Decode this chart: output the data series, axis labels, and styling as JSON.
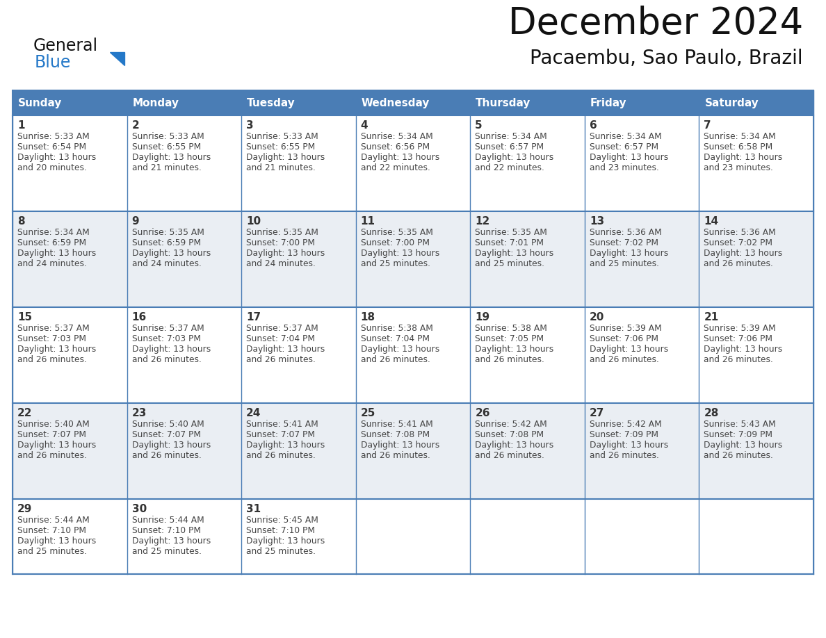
{
  "title": "December 2024",
  "subtitle": "Pacaembu, Sao Paulo, Brazil",
  "days_of_week": [
    "Sunday",
    "Monday",
    "Tuesday",
    "Wednesday",
    "Thursday",
    "Friday",
    "Saturday"
  ],
  "header_bg": "#4A7DB5",
  "header_text": "#FFFFFF",
  "cell_border": "#4A7DB5",
  "row_bg_even": "#EAEEF3",
  "row_bg_odd": "#FFFFFF",
  "day_number_color": "#333333",
  "cell_text_color": "#444444",
  "background": "#FFFFFF",
  "title_color": "#111111",
  "subtitle_color": "#111111",
  "logo_general_color": "#111111",
  "logo_blue_color": "#2478C8",
  "calendar_data": [
    [
      {
        "day": 1,
        "sunrise": "5:33 AM",
        "sunset": "6:54 PM",
        "daylight_hours": 13,
        "daylight_min": "20 minutes."
      },
      {
        "day": 2,
        "sunrise": "5:33 AM",
        "sunset": "6:55 PM",
        "daylight_hours": 13,
        "daylight_min": "21 minutes."
      },
      {
        "day": 3,
        "sunrise": "5:33 AM",
        "sunset": "6:55 PM",
        "daylight_hours": 13,
        "daylight_min": "21 minutes."
      },
      {
        "day": 4,
        "sunrise": "5:34 AM",
        "sunset": "6:56 PM",
        "daylight_hours": 13,
        "daylight_min": "22 minutes."
      },
      {
        "day": 5,
        "sunrise": "5:34 AM",
        "sunset": "6:57 PM",
        "daylight_hours": 13,
        "daylight_min": "22 minutes."
      },
      {
        "day": 6,
        "sunrise": "5:34 AM",
        "sunset": "6:57 PM",
        "daylight_hours": 13,
        "daylight_min": "23 minutes."
      },
      {
        "day": 7,
        "sunrise": "5:34 AM",
        "sunset": "6:58 PM",
        "daylight_hours": 13,
        "daylight_min": "23 minutes."
      }
    ],
    [
      {
        "day": 8,
        "sunrise": "5:34 AM",
        "sunset": "6:59 PM",
        "daylight_hours": 13,
        "daylight_min": "24 minutes."
      },
      {
        "day": 9,
        "sunrise": "5:35 AM",
        "sunset": "6:59 PM",
        "daylight_hours": 13,
        "daylight_min": "24 minutes."
      },
      {
        "day": 10,
        "sunrise": "5:35 AM",
        "sunset": "7:00 PM",
        "daylight_hours": 13,
        "daylight_min": "24 minutes."
      },
      {
        "day": 11,
        "sunrise": "5:35 AM",
        "sunset": "7:00 PM",
        "daylight_hours": 13,
        "daylight_min": "25 minutes."
      },
      {
        "day": 12,
        "sunrise": "5:35 AM",
        "sunset": "7:01 PM",
        "daylight_hours": 13,
        "daylight_min": "25 minutes."
      },
      {
        "day": 13,
        "sunrise": "5:36 AM",
        "sunset": "7:02 PM",
        "daylight_hours": 13,
        "daylight_min": "25 minutes."
      },
      {
        "day": 14,
        "sunrise": "5:36 AM",
        "sunset": "7:02 PM",
        "daylight_hours": 13,
        "daylight_min": "26 minutes."
      }
    ],
    [
      {
        "day": 15,
        "sunrise": "5:37 AM",
        "sunset": "7:03 PM",
        "daylight_hours": 13,
        "daylight_min": "26 minutes."
      },
      {
        "day": 16,
        "sunrise": "5:37 AM",
        "sunset": "7:03 PM",
        "daylight_hours": 13,
        "daylight_min": "26 minutes."
      },
      {
        "day": 17,
        "sunrise": "5:37 AM",
        "sunset": "7:04 PM",
        "daylight_hours": 13,
        "daylight_min": "26 minutes."
      },
      {
        "day": 18,
        "sunrise": "5:38 AM",
        "sunset": "7:04 PM",
        "daylight_hours": 13,
        "daylight_min": "26 minutes."
      },
      {
        "day": 19,
        "sunrise": "5:38 AM",
        "sunset": "7:05 PM",
        "daylight_hours": 13,
        "daylight_min": "26 minutes."
      },
      {
        "day": 20,
        "sunrise": "5:39 AM",
        "sunset": "7:06 PM",
        "daylight_hours": 13,
        "daylight_min": "26 minutes."
      },
      {
        "day": 21,
        "sunrise": "5:39 AM",
        "sunset": "7:06 PM",
        "daylight_hours": 13,
        "daylight_min": "26 minutes."
      }
    ],
    [
      {
        "day": 22,
        "sunrise": "5:40 AM",
        "sunset": "7:07 PM",
        "daylight_hours": 13,
        "daylight_min": "26 minutes."
      },
      {
        "day": 23,
        "sunrise": "5:40 AM",
        "sunset": "7:07 PM",
        "daylight_hours": 13,
        "daylight_min": "26 minutes."
      },
      {
        "day": 24,
        "sunrise": "5:41 AM",
        "sunset": "7:07 PM",
        "daylight_hours": 13,
        "daylight_min": "26 minutes."
      },
      {
        "day": 25,
        "sunrise": "5:41 AM",
        "sunset": "7:08 PM",
        "daylight_hours": 13,
        "daylight_min": "26 minutes."
      },
      {
        "day": 26,
        "sunrise": "5:42 AM",
        "sunset": "7:08 PM",
        "daylight_hours": 13,
        "daylight_min": "26 minutes."
      },
      {
        "day": 27,
        "sunrise": "5:42 AM",
        "sunset": "7:09 PM",
        "daylight_hours": 13,
        "daylight_min": "26 minutes."
      },
      {
        "day": 28,
        "sunrise": "5:43 AM",
        "sunset": "7:09 PM",
        "daylight_hours": 13,
        "daylight_min": "26 minutes."
      }
    ],
    [
      {
        "day": 29,
        "sunrise": "5:44 AM",
        "sunset": "7:10 PM",
        "daylight_hours": 13,
        "daylight_min": "25 minutes."
      },
      {
        "day": 30,
        "sunrise": "5:44 AM",
        "sunset": "7:10 PM",
        "daylight_hours": 13,
        "daylight_min": "25 minutes."
      },
      {
        "day": 31,
        "sunrise": "5:45 AM",
        "sunset": "7:10 PM",
        "daylight_hours": 13,
        "daylight_min": "25 minutes."
      },
      null,
      null,
      null,
      null
    ]
  ]
}
